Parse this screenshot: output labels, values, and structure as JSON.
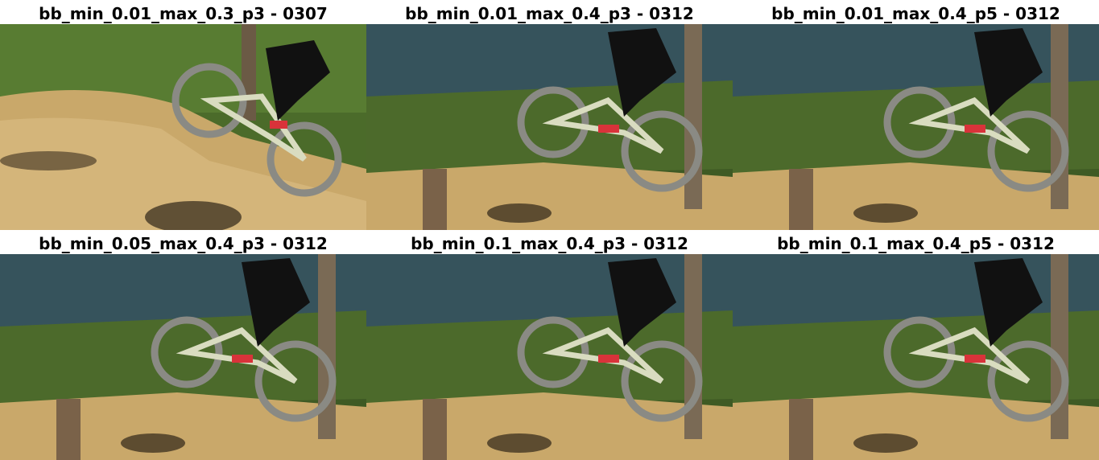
{
  "panels": [
    {
      "title": "bb_min_0.01_max_0.3_p3 - 0307",
      "scene": "downhill-dirt-drop"
    },
    {
      "title": "bb_min_0.01_max_0.4_p3 - 0312",
      "scene": "forest-jump"
    },
    {
      "title": "bb_min_0.01_max_0.4_p5 - 0312",
      "scene": "forest-jump"
    },
    {
      "title": "bb_min_0.05_max_0.4_p3 - 0312",
      "scene": "forest-jump"
    },
    {
      "title": "bb_min_0.1_max_0.4_p3 - 0312",
      "scene": "forest-jump"
    },
    {
      "title": "bb_min_0.1_max_0.4_p5 - 0312",
      "scene": "forest-jump"
    }
  ],
  "colors": {
    "sky": "#2f4f8a",
    "foliage": "#3e5a24",
    "dirt": "#c9a86a",
    "jersey": "#111111",
    "shoe": "#d9333a",
    "frame": "#d9dcc0"
  }
}
